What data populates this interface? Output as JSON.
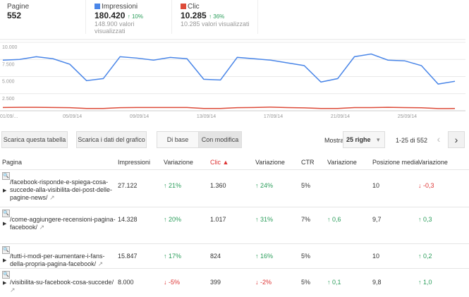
{
  "summary": {
    "pages": {
      "label": "Pagine",
      "value": "552"
    },
    "impressions": {
      "label": "Impressioni",
      "value": "180.420",
      "change": "10%",
      "sub": "148.900 valori visualizzati",
      "color": "#4a86e8"
    },
    "clicks": {
      "label": "Clic",
      "value": "10.285",
      "change": "36%",
      "sub": "10.285 valori visualizzati",
      "color": "#dd4b39"
    }
  },
  "chart_data": {
    "type": "line",
    "x": [
      "01/09",
      "02/09",
      "03/09",
      "04/09",
      "05/09",
      "06/09",
      "07/09",
      "08/09",
      "09/09",
      "10/09",
      "11/09",
      "12/09",
      "13/09",
      "14/09",
      "15/09",
      "16/09",
      "17/09",
      "18/09",
      "19/09",
      "20/09",
      "21/09",
      "22/09",
      "23/09",
      "24/09",
      "25/09",
      "26/09",
      "27/09",
      "28/09"
    ],
    "xtick_labels": [
      "01/09/...",
      "05/09/14",
      "09/09/14",
      "13/09/14",
      "17/09/14",
      "21/09/14",
      "25/09/14"
    ],
    "ytick_labels": [
      "10.000",
      "7.500",
      "5.000",
      "2.500"
    ],
    "ylim": [
      0,
      10000
    ],
    "grid": true,
    "series": [
      {
        "name": "Impressioni",
        "color": "#4a86e8",
        "values": [
          7400,
          7500,
          7900,
          7600,
          6800,
          4400,
          4700,
          7900,
          7700,
          7400,
          7800,
          7600,
          4600,
          4500,
          7800,
          7600,
          7400,
          7000,
          6600,
          4200,
          4700,
          7900,
          8300,
          7400,
          7300,
          6600,
          3900,
          4300
        ]
      },
      {
        "name": "Clic",
        "color": "#dd4b39",
        "values": [
          480,
          500,
          500,
          480,
          450,
          330,
          330,
          450,
          480,
          480,
          480,
          480,
          330,
          330,
          450,
          480,
          530,
          460,
          430,
          330,
          330,
          460,
          470,
          500,
          470,
          440,
          320,
          330
        ]
      }
    ]
  },
  "toolbar": {
    "download_table": "Scarica questa tabella",
    "download_chart": "Scarica i dati del grafico",
    "basic": "Di base",
    "modified": "Con modifica",
    "show": "Mostra",
    "rows": "25 righe",
    "range": "1-25 di 552"
  },
  "table": {
    "headers": [
      "Pagina",
      "Impressioni",
      "Variazione",
      "Clic ▲",
      "Variazione",
      "CTR",
      "Variazione",
      "Posizione media",
      "Variazione"
    ],
    "rows": [
      {
        "page": "/facebook-risponde-e-spiega-cosa-succede-alla-visibilita-dei-post-delle-pagine-news/",
        "impr": "27.122",
        "impr_chg": "↑ 21%",
        "clicks": "1.360",
        "clicks_chg": "↑ 24%",
        "ctr": "5%",
        "ctr_chg": "",
        "pos": "10",
        "pos_chg": "↓ -0,3"
      },
      {
        "page": "/come-aggiungere-recensioni-pagina-facebook/",
        "impr": "14.328",
        "impr_chg": "↑ 20%",
        "clicks": "1.017",
        "clicks_chg": "↑ 31%",
        "ctr": "7%",
        "ctr_chg": "↑ 0,6",
        "pos": "9,7",
        "pos_chg": "↑ 0,3"
      },
      {
        "page": "/tutti-i-modi-per-aumentare-i-fans-della-propria-pagina-facebook/",
        "impr": "15.847",
        "impr_chg": "↑ 17%",
        "clicks": "824",
        "clicks_chg": "↑ 16%",
        "ctr": "5%",
        "ctr_chg": "",
        "pos": "10",
        "pos_chg": "↑ 0,2"
      },
      {
        "page": "/visibilita-su-facebook-cosa-succede/",
        "impr": "8.000",
        "impr_chg": "↓ -5%",
        "clicks": "399",
        "clicks_chg": "↓ -2%",
        "ctr": "5%",
        "ctr_chg": "↑ 0,1",
        "pos": "9,8",
        "pos_chg": "↑ 1,0"
      }
    ]
  }
}
